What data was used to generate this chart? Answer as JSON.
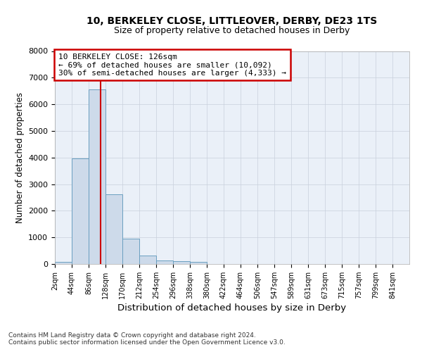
{
  "title_line1": "10, BERKELEY CLOSE, LITTLEOVER, DERBY, DE23 1TS",
  "title_line2": "Size of property relative to detached houses in Derby",
  "xlabel": "Distribution of detached houses by size in Derby",
  "ylabel": "Number of detached properties",
  "footer1": "Contains HM Land Registry data © Crown copyright and database right 2024.",
  "footer2": "Contains public sector information licensed under the Open Government Licence v3.0.",
  "bin_labels": [
    "2sqm",
    "44sqm",
    "86sqm",
    "128sqm",
    "170sqm",
    "212sqm",
    "254sqm",
    "296sqm",
    "338sqm",
    "380sqm",
    "422sqm",
    "464sqm",
    "506sqm",
    "547sqm",
    "589sqm",
    "631sqm",
    "673sqm",
    "715sqm",
    "757sqm",
    "799sqm",
    "841sqm"
  ],
  "bar_values": [
    75,
    3980,
    6550,
    2620,
    950,
    310,
    135,
    110,
    85,
    0,
    0,
    0,
    0,
    0,
    0,
    0,
    0,
    0,
    0,
    0,
    0
  ],
  "bar_color": "#cddaea",
  "bar_edge_color": "#6a9fc0",
  "grid_color": "#c8d0dc",
  "bg_color": "#eaf0f8",
  "vline_color": "#cc0000",
  "annotation_box_color": "#cc0000",
  "annotation_text_line1": "10 BERKELEY CLOSE: 126sqm",
  "annotation_text_line2": "← 69% of detached houses are smaller (10,092)",
  "annotation_text_line3": "30% of semi-detached houses are larger (4,333) →",
  "ylim": [
    0,
    8000
  ],
  "yticks": [
    0,
    1000,
    2000,
    3000,
    4000,
    5000,
    6000,
    7000,
    8000
  ],
  "vline_x_bin": 2.69
}
